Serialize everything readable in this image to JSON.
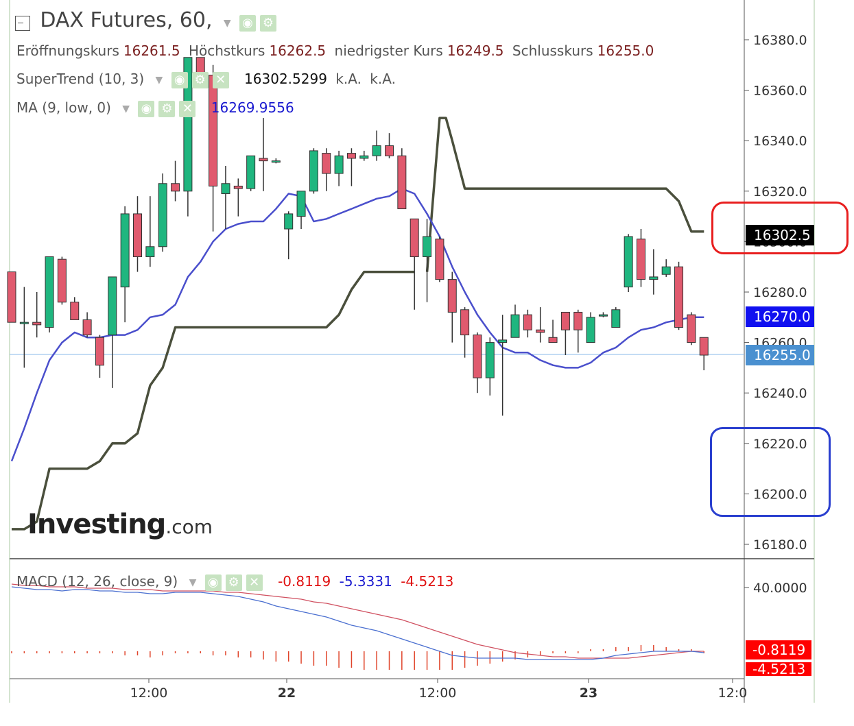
{
  "header": {
    "title": "DAX Futures, 60,",
    "ohlc": [
      {
        "label": "Eröffnungskurs",
        "value": "16261.5"
      },
      {
        "label": "Höchstkurs",
        "value": "16262.5"
      },
      {
        "label": "niedrigster Kurs",
        "value": "16249.5"
      },
      {
        "label": "Schlusskurs",
        "value": "16255.0"
      }
    ]
  },
  "indicators": {
    "supertrend": {
      "label": "SuperTrend (10, 3)",
      "value": "16302.5299",
      "extra1": "k.A.",
      "extra2": "k.A."
    },
    "ma": {
      "label": "MA (9, low, 0)",
      "value": "16269.9556"
    },
    "macd": {
      "label": "MACD (12, 26, close, 9)",
      "v1": "-0.8119",
      "v2": "-5.3331",
      "v3": "-4.5213"
    }
  },
  "price_tags": {
    "supertrend": "16302.5",
    "ma": "16270.0",
    "last": "16255.0",
    "macd_top": "-0.8119",
    "macd_bottom": "-4.5213"
  },
  "watermark": {
    "brand": "Investing",
    "suffix": ".com"
  },
  "colors": {
    "up": "#1fb67f",
    "down": "#e05a6e",
    "supertrend": "#4a4f3c",
    "ma": "#4a4fcc",
    "macd_line": "#4a6fd0",
    "signal_line": "#d05060",
    "hist": "#e0442a",
    "red_box": "#e81e1e",
    "blue_box": "#2a3fcf"
  },
  "chart_data": [
    {
      "type": "candlestick",
      "title": "DAX Futures, 60,",
      "x_ticks": [
        "12:00",
        "22",
        "12:00",
        "23",
        "12:0"
      ],
      "y_ticks": [
        "16380.0",
        "16360.0",
        "16340.0",
        "16320.0",
        "16300.0",
        "16280.0",
        "16260.0",
        "16240.0",
        "16220.0",
        "16200.0",
        "16180.0"
      ],
      "ylim": [
        16175,
        16393
      ],
      "candles": [
        [
          16288,
          16288,
          16268,
          16268
        ],
        [
          16268,
          16282,
          16250,
          16268
        ],
        [
          16268,
          16280,
          16262,
          16267
        ],
        [
          16266,
          16294,
          16264,
          16294
        ],
        [
          16293,
          16294,
          16275,
          16276
        ],
        [
          16276,
          16278,
          16269,
          16269
        ],
        [
          16269,
          16272,
          16262,
          16263
        ],
        [
          16262,
          16263,
          16246,
          16251
        ],
        [
          16263,
          16285,
          16242,
          16286
        ],
        [
          16282,
          16314,
          16268,
          16311
        ],
        [
          16311,
          16318,
          16288,
          16294
        ],
        [
          16294,
          16318,
          16290,
          16298
        ],
        [
          16298,
          16327,
          16296,
          16323
        ],
        [
          16323,
          16332,
          16316,
          16320
        ],
        [
          16320,
          16373,
          16310,
          16373
        ],
        [
          16373,
          16373,
          16362,
          16366
        ],
        [
          16366,
          16370,
          16304,
          16322
        ],
        [
          16319,
          16330,
          16305,
          16323
        ],
        [
          16322,
          16325,
          16310,
          16321
        ],
        [
          16321,
          16334,
          16320,
          16334
        ],
        [
          16333,
          16349,
          16320,
          16332
        ],
        [
          16332,
          16333,
          16331,
          16332
        ],
        [
          16305,
          16312,
          16293,
          16311
        ],
        [
          16310,
          16320,
          16305,
          16320
        ],
        [
          16320,
          16337,
          16319,
          16336
        ],
        [
          16335,
          16337,
          16320,
          16327
        ],
        [
          16327,
          16336,
          16322,
          16334
        ],
        [
          16335,
          16337,
          16322,
          16333
        ],
        [
          16333,
          16336,
          16332,
          16334
        ],
        [
          16334,
          16344,
          16332,
          16338
        ],
        [
          16338,
          16343,
          16333,
          16334
        ],
        [
          16334,
          16337,
          16314,
          16313
        ],
        [
          16309,
          16307,
          16273,
          16294
        ],
        [
          16294,
          16309,
          16276,
          16302
        ],
        [
          16301,
          16302,
          16284,
          16285
        ],
        [
          16285,
          16288,
          16260,
          16272
        ],
        [
          16273,
          16274,
          16254,
          16263
        ],
        [
          16263,
          16264,
          16240,
          16246
        ],
        [
          16246,
          16262,
          16239,
          16260
        ],
        [
          16260,
          16271,
          16231,
          16261
        ],
        [
          16262,
          16275,
          16262,
          16271
        ],
        [
          16271,
          16273,
          16262,
          16265
        ],
        [
          16265,
          16274,
          16260,
          16264
        ],
        [
          16262,
          16269,
          16262,
          16260
        ],
        [
          16272,
          16272,
          16255,
          16265
        ],
        [
          16272,
          16273,
          16256,
          16265
        ],
        [
          16260,
          16272,
          16260,
          16270
        ],
        [
          16271,
          16272,
          16270,
          16271
        ],
        [
          16266,
          16274,
          16266,
          16273
        ],
        [
          16282,
          16303,
          16280,
          16302
        ],
        [
          16301,
          16305,
          16282,
          16285
        ],
        [
          16285,
          16297,
          16279,
          16286
        ],
        [
          16287,
          16293,
          16286,
          16290
        ],
        [
          16290,
          16292,
          16265,
          16266
        ],
        [
          16271,
          16272,
          16259,
          16260
        ],
        [
          16262,
          16262,
          16249,
          16255
        ]
      ],
      "candle_ohlc_order": [
        "open",
        "high",
        "low",
        "close"
      ],
      "series": [
        {
          "name": "SuperTrend (10, 3)",
          "x_index": [
            0,
            1,
            2,
            3,
            4,
            5,
            6,
            7,
            8,
            9,
            10,
            11,
            12,
            13,
            14,
            15,
            16,
            17,
            18,
            19,
            20,
            21,
            22,
            23,
            24,
            25,
            26,
            27,
            28,
            29,
            30,
            31,
            32,
            33,
            34,
            34.5,
            35,
            36,
            37,
            38,
            39,
            40,
            41,
            42,
            43,
            44,
            45,
            46,
            47,
            48,
            49,
            50,
            51,
            52,
            53,
            54,
            55
          ],
          "values": [
            16186,
            16186,
            16189,
            16210,
            16210,
            16210,
            16210,
            16213,
            16220,
            16220,
            16224,
            16243,
            16250,
            16266,
            16266,
            16266,
            16266,
            16266,
            16266,
            16266,
            16266,
            16266,
            16266,
            16266,
            16266,
            16266,
            16271,
            16281,
            16288,
            16288,
            16288,
            16288,
            16288,
            16288,
            16349,
            16349,
            16340,
            16321,
            16321,
            16321,
            16321,
            16321,
            16321,
            16321,
            16321,
            16321,
            16321,
            16321,
            16321,
            16321,
            16321,
            16321,
            16321,
            16321,
            16316,
            16304,
            16304
          ],
          "breaks": "uptrend line then downtrend line after index 34"
        },
        {
          "name": "MA (9, low, 0)",
          "values": [
            16213,
            16226,
            16240,
            16253,
            16260,
            16264,
            16262,
            16262,
            16263,
            16263,
            16265,
            16270,
            16271,
            16275,
            16286,
            16292,
            16300,
            16305,
            16307,
            16308,
            16308,
            16313,
            16319,
            16318,
            16308,
            16309,
            16311,
            16313,
            16315,
            16317,
            16318,
            16321,
            16319,
            16311,
            16302,
            16290,
            16280,
            16271,
            16264,
            16258,
            16256,
            16256,
            16253,
            16251,
            16250,
            16250,
            16252,
            16256,
            16258,
            16262,
            16265,
            16266,
            16268,
            16269,
            16270,
            16270
          ]
        }
      ]
    },
    {
      "type": "line",
      "title": "MACD (12, 26, close, 9)",
      "y_ticks": [
        "40.0000"
      ],
      "series": [
        {
          "name": "MACD",
          "values": [
            42,
            41,
            40,
            40,
            39,
            40,
            40,
            39,
            39,
            38,
            38,
            37,
            37,
            38,
            38,
            38,
            37,
            36,
            35,
            33,
            31,
            28,
            26,
            24,
            22,
            20,
            17,
            14,
            12,
            10,
            7,
            4,
            1,
            -2,
            -5,
            -8,
            -9,
            -10,
            -10,
            -10,
            -10,
            -11,
            -11,
            -11,
            -11,
            -11,
            -11,
            -10,
            -8,
            -7,
            -6,
            -5,
            -5,
            -5,
            -5,
            -6
          ]
        },
        {
          "name": "Signal",
          "values": [
            44,
            43,
            43,
            42,
            42,
            42,
            41,
            41,
            41,
            40,
            40,
            40,
            39,
            39,
            39,
            39,
            39,
            38,
            38,
            37,
            36,
            35,
            34,
            33,
            31,
            30,
            28,
            26,
            24,
            22,
            20,
            18,
            15,
            12,
            9,
            6,
            3,
            0,
            -2,
            -4,
            -6,
            -7,
            -8,
            -9,
            -9,
            -10,
            -10,
            -10,
            -10,
            -10,
            -9,
            -8,
            -7,
            -6,
            -5,
            -5
          ]
        },
        {
          "name": "Histogram",
          "values": [
            -1,
            -1,
            -1,
            -1,
            0,
            -1,
            -1,
            -1,
            -1,
            -2,
            -2,
            -3,
            -2,
            -1,
            -1,
            -1,
            -2,
            -2,
            -3,
            -3,
            -4,
            -5,
            -5,
            -6,
            -7,
            -7,
            -8,
            -8,
            -9,
            -9,
            -9,
            -9,
            -9,
            -9,
            -9,
            -9,
            -8,
            -7,
            -6,
            -5,
            -4,
            -3,
            -2,
            -1,
            0,
            0,
            1,
            1,
            2,
            2,
            3,
            3,
            2,
            1,
            1,
            0
          ]
        }
      ]
    }
  ]
}
